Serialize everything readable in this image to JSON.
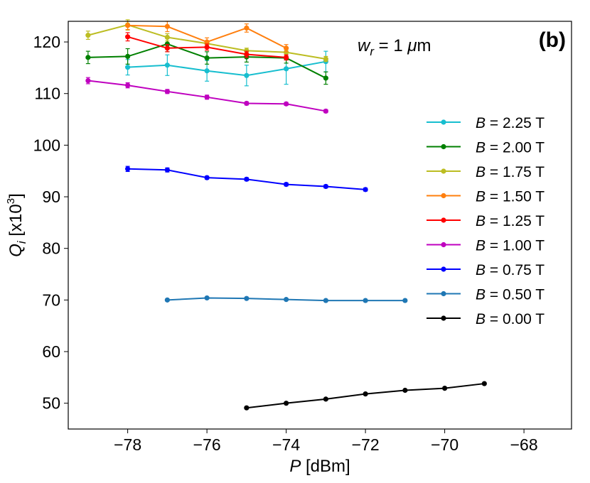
{
  "chart_data": {
    "type": "line",
    "xlabel": "P [dBm]",
    "ylabel": "Q_i [x10^3]",
    "annotation": "w_r = 1 μm",
    "panel_label": "(b)",
    "xlim": [
      -79.5,
      -66.8
    ],
    "ylim": [
      45,
      124
    ],
    "xticks": [
      -78,
      -76,
      -74,
      -72,
      -70,
      -68
    ],
    "yticks": [
      50,
      60,
      70,
      80,
      90,
      100,
      110,
      120
    ],
    "xtick_labels": [
      "−78",
      "−76",
      "−74",
      "−72",
      "−70",
      "−68"
    ],
    "ytick_labels": [
      "50",
      "60",
      "70",
      "80",
      "90",
      "100",
      "110",
      "120"
    ],
    "legend_position": "center-right",
    "series": [
      {
        "name": "B = 2.25 T",
        "B": "2.25",
        "color": "#17becf",
        "x": [
          -78,
          -77,
          -76,
          -75,
          -74,
          -73
        ],
        "y": [
          115.1,
          115.5,
          114.4,
          113.5,
          114.8,
          116.2
        ],
        "err": [
          1.5,
          2.0,
          2.0,
          2.0,
          3.0,
          2.0
        ]
      },
      {
        "name": "B = 2.00 T",
        "B": "2.00",
        "color": "#008000",
        "x": [
          -79,
          -78,
          -77,
          -76,
          -75,
          -74,
          -73
        ],
        "y": [
          117.0,
          117.2,
          119.6,
          116.9,
          117.1,
          116.9,
          113.0
        ],
        "err": [
          1.2,
          1.5,
          1.5,
          1.2,
          1.0,
          1.0,
          1.2
        ]
      },
      {
        "name": "B = 1.75 T",
        "B": "1.75",
        "color": "#bcbd22",
        "x": [
          -79,
          -78,
          -77,
          -76,
          -75,
          -74,
          -73
        ],
        "y": [
          121.3,
          123.3,
          120.9,
          119.7,
          118.3,
          118.0,
          116.7
        ],
        "err": [
          0.8,
          1.0,
          0.7,
          0.5,
          0.5,
          0.5,
          0.5
        ]
      },
      {
        "name": "B = 1.50 T",
        "B": "1.50",
        "color": "#ff7f0e",
        "x": [
          -78,
          -77,
          -76,
          -75,
          -74
        ],
        "y": [
          123.2,
          123.0,
          120.0,
          122.7,
          118.8
        ],
        "err": [
          0.8,
          1.0,
          0.8,
          0.8,
          0.7
        ]
      },
      {
        "name": "B = 1.25 T",
        "B": "1.25",
        "color": "#ff0000",
        "x": [
          -78,
          -77,
          -76,
          -75,
          -74
        ],
        "y": [
          121.0,
          118.8,
          119.0,
          117.6,
          117.0
        ],
        "err": [
          0.8,
          0.7,
          0.6,
          0.6,
          0.5
        ]
      },
      {
        "name": "B = 1.00 T",
        "B": "1.00",
        "color": "#bf00bf",
        "x": [
          -79,
          -78,
          -77,
          -76,
          -75,
          -74,
          -73
        ],
        "y": [
          112.5,
          111.6,
          110.4,
          109.3,
          108.1,
          108.0,
          106.6
        ],
        "err": [
          0.6,
          0.5,
          0.4,
          0.4,
          0.3,
          0.3,
          0.3
        ]
      },
      {
        "name": "B = 0.75 T",
        "B": "0.75",
        "color": "#0000ff",
        "x": [
          -78,
          -77,
          -76,
          -75,
          -74,
          -73,
          -72
        ],
        "y": [
          95.4,
          95.2,
          93.7,
          93.4,
          92.4,
          92.0,
          91.4
        ],
        "err": [
          0.5,
          0.4,
          0.3,
          0.3,
          0.3,
          0.3,
          0.3
        ]
      },
      {
        "name": "B = 0.50 T",
        "B": "0.50",
        "color": "#1f77b4",
        "x": [
          -77,
          -76,
          -75,
          -74,
          -73,
          -72,
          -71
        ],
        "y": [
          70.0,
          70.4,
          70.3,
          70.1,
          69.9,
          69.9,
          69.9
        ],
        "err": [
          0.2,
          0.2,
          0.2,
          0.2,
          0.2,
          0.2,
          0.2
        ]
      },
      {
        "name": "B = 0.00 T",
        "B": "0.00",
        "color": "#000000",
        "x": [
          -75,
          -74,
          -73,
          -72,
          -71,
          -70,
          -69
        ],
        "y": [
          49.1,
          50.0,
          50.8,
          51.8,
          52.5,
          52.9,
          53.8
        ],
        "err": [
          0.1,
          0.1,
          0.1,
          0.1,
          0.1,
          0.1,
          0.1
        ]
      }
    ]
  }
}
